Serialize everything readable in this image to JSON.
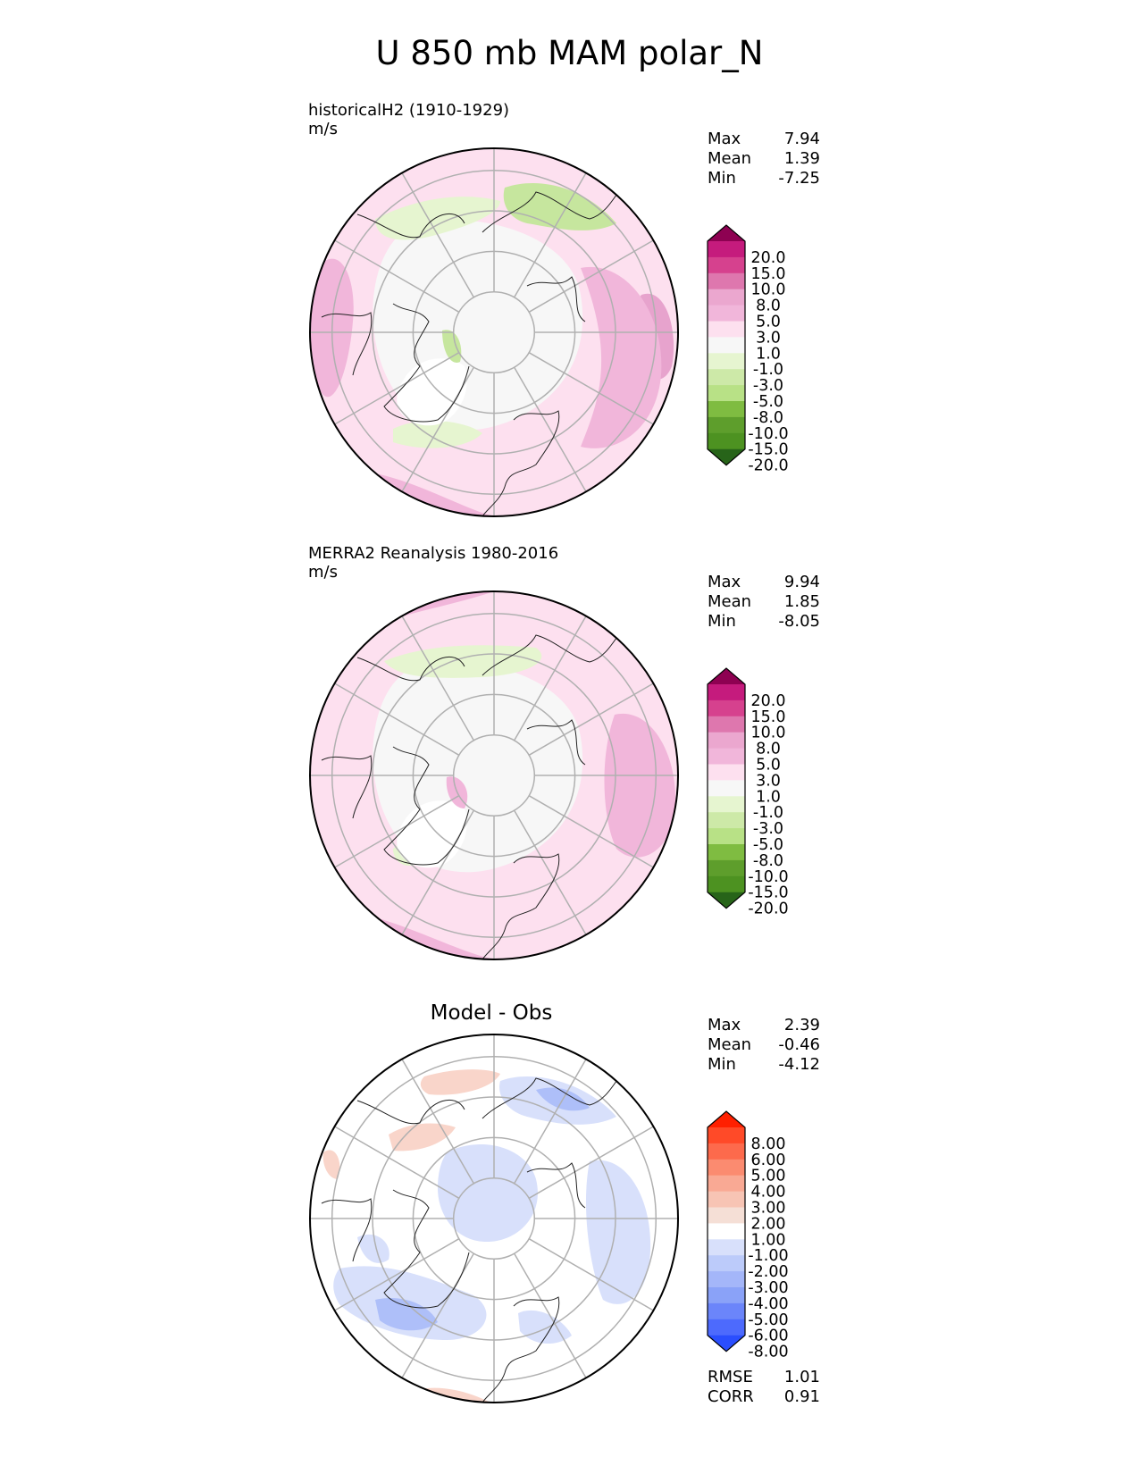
{
  "figure": {
    "title": "U 850 mb MAM polar_N"
  },
  "panels": [
    {
      "id": "model",
      "title": "historicalH2 (1910-1929)",
      "units": "m/s",
      "stats": [
        {
          "label": "Max",
          "value": "7.94"
        },
        {
          "label": "Mean",
          "value": "1.39"
        },
        {
          "label": "Min",
          "value": "-7.25"
        }
      ]
    },
    {
      "id": "obs",
      "title": "MERRA2 Reanalysis 1980-2016",
      "units": "m/s",
      "stats": [
        {
          "label": "Max",
          "value": "9.94"
        },
        {
          "label": "Mean",
          "value": "1.85"
        },
        {
          "label": "Min",
          "value": "-8.05"
        }
      ]
    },
    {
      "id": "diff",
      "title": "Model - Obs",
      "stats": [
        {
          "label": "Max",
          "value": "2.39"
        },
        {
          "label": "Mean",
          "value": "-0.46"
        },
        {
          "label": "Min",
          "value": "-4.12"
        }
      ],
      "metrics": [
        {
          "label": "RMSE",
          "value": "1.01"
        },
        {
          "label": "CORR",
          "value": "0.91"
        }
      ]
    }
  ],
  "chart_data": [
    {
      "type": "heatmap",
      "projection": "north polar stereographic",
      "title": "historicalH2 (1910-1929)",
      "units": "m/s",
      "variable": "U 850 mb",
      "season": "MAM",
      "stats": {
        "max": 7.94,
        "mean": 1.39,
        "min": -7.25
      },
      "colorbar": {
        "levels": [
          "20.0",
          "15.0",
          "10.0",
          "8.0",
          "5.0",
          "3.0",
          "1.0",
          "-1.0",
          "-3.0",
          "-5.0",
          "-8.0",
          "-10.0",
          "-15.0",
          "-20.0"
        ],
        "colors": [
          "#8e0152",
          "#c51b7d",
          "#de77ae",
          "#f1b6da",
          "#fde0ef",
          "#f7f7f7",
          "#e6f5d0",
          "#b8e186",
          "#7fbc41",
          "#4d9221",
          "#276419"
        ],
        "extend": "both"
      }
    },
    {
      "type": "heatmap",
      "projection": "north polar stereographic",
      "title": "MERRA2 Reanalysis 1980-2016",
      "units": "m/s",
      "variable": "U 850 mb",
      "season": "MAM",
      "stats": {
        "max": 9.94,
        "mean": 1.85,
        "min": -8.05
      },
      "colorbar": {
        "levels": [
          "20.0",
          "15.0",
          "10.0",
          "8.0",
          "5.0",
          "3.0",
          "1.0",
          "-1.0",
          "-3.0",
          "-5.0",
          "-8.0",
          "-10.0",
          "-15.0",
          "-20.0"
        ],
        "extend": "both"
      }
    },
    {
      "type": "heatmap",
      "projection": "north polar stereographic",
      "title": "Model - Obs",
      "variable": "U 850 mb",
      "season": "MAM",
      "stats": {
        "max": 2.39,
        "mean": -0.46,
        "min": -4.12,
        "rmse": 1.01,
        "corr": 0.91
      },
      "colorbar": {
        "levels": [
          "8.00",
          "6.00",
          "5.00",
          "4.00",
          "3.00",
          "2.00",
          "1.00",
          "-1.00",
          "-2.00",
          "-3.00",
          "-4.00",
          "-5.00",
          "-6.00",
          "-8.00"
        ],
        "colors": [
          "#ff2000",
          "#ff5a3a",
          "#fd8b6e",
          "#f9b6a2",
          "#f5dbd2",
          "#ffffff",
          "#d8e0fb",
          "#aebff9",
          "#8aa2f8",
          "#6b85fa",
          "#4d6afd",
          "#2a4efe",
          "#0000ff"
        ],
        "extend": "both"
      }
    }
  ]
}
